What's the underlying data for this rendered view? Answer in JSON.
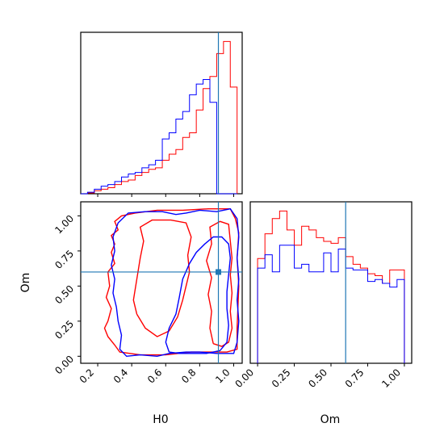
{
  "chart_data": {
    "type": "corner",
    "parameters": [
      "H0",
      "Om"
    ],
    "truths": {
      "H0": 0.91,
      "Om": 0.6
    },
    "colors": {
      "red_samples": "#ff0000",
      "blue_samples": "#0000ff",
      "truth_line": "#1f77b4"
    },
    "panels": [
      {
        "name": "H0-marginal",
        "type": "step-histogram",
        "x_param": "H0",
        "xlim": [
          0.1,
          1.05
        ],
        "xticks": [
          0.2,
          0.4,
          0.6,
          0.8,
          1.0
        ],
        "bin_edges": [
          0.1,
          0.14,
          0.18,
          0.22,
          0.26,
          0.3,
          0.34,
          0.38,
          0.42,
          0.46,
          0.5,
          0.54,
          0.58,
          0.62,
          0.66,
          0.7,
          0.74,
          0.78,
          0.82,
          0.86,
          0.9,
          0.94,
          0.98,
          1.02
        ],
        "series": [
          {
            "color": "red",
            "values": [
              0,
              0.005,
              0.02,
              0.03,
              0.04,
              0.06,
              0.08,
              0.09,
              0.12,
              0.14,
              0.16,
              0.17,
              0.22,
              0.26,
              0.29,
              0.37,
              0.4,
              0.55,
              0.69,
              0.77,
              0.92,
              1.0,
              0.7
            ]
          },
          {
            "color": "blue",
            "values": [
              0,
              0.01,
              0.03,
              0.05,
              0.06,
              0.08,
              0.11,
              0.13,
              0.14,
              0.17,
              0.19,
              0.22,
              0.36,
              0.4,
              0.49,
              0.54,
              0.65,
              0.72,
              0.75,
              0.6,
              0.0,
              0.0,
              0.0
            ]
          }
        ]
      },
      {
        "name": "H0-Om-joint",
        "type": "contour",
        "x_param": "H0",
        "y_param": "Om",
        "xlim": [
          0.1,
          1.05
        ],
        "ylim": [
          -0.05,
          1.1
        ],
        "xticks": [
          0.2,
          0.4,
          0.6,
          0.8,
          1.0
        ],
        "yticks": [
          0.0,
          0.25,
          0.5,
          0.75,
          1.0
        ],
        "series": [
          {
            "color": "red",
            "contours": [
              [
                [
                  0.26,
                  0.25
                ],
                [
                  0.24,
                  0.2
                ],
                [
                  0.26,
                  0.14
                ],
                [
                  0.3,
                  0.08
                ],
                [
                  0.33,
                  0.03
                ],
                [
                  0.45,
                  0.01
                ],
                [
                  0.6,
                  0.01
                ],
                [
                  0.75,
                  0.03
                ],
                [
                  0.86,
                  0.03
                ],
                [
                  0.96,
                  0.03
                ],
                [
                  1.02,
                  0.05
                ],
                [
                  1.02,
                  0.2
                ],
                [
                  1.03,
                  0.5
                ],
                [
                  1.02,
                  0.7
                ],
                [
                  1.03,
                  0.88
                ],
                [
                  1.01,
                  0.98
                ],
                [
                  0.98,
                  1.05
                ],
                [
                  0.85,
                  1.05
                ],
                [
                  0.7,
                  1.04
                ],
                [
                  0.55,
                  1.04
                ],
                [
                  0.42,
                  1.02
                ],
                [
                  0.34,
                  1.0
                ],
                [
                  0.3,
                  0.96
                ],
                [
                  0.32,
                  0.9
                ],
                [
                  0.28,
                  0.86
                ],
                [
                  0.3,
                  0.8
                ],
                [
                  0.28,
                  0.74
                ],
                [
                  0.3,
                  0.66
                ],
                [
                  0.26,
                  0.6
                ],
                [
                  0.27,
                  0.5
                ],
                [
                  0.25,
                  0.42
                ],
                [
                  0.28,
                  0.34
                ],
                [
                  0.26,
                  0.25
                ]
              ],
              [
                [
                  0.43,
                  0.3
                ],
                [
                  0.41,
                  0.4
                ],
                [
                  0.43,
                  0.55
                ],
                [
                  0.45,
                  0.7
                ],
                [
                  0.47,
                  0.82
                ],
                [
                  0.45,
                  0.92
                ],
                [
                  0.52,
                  0.97
                ],
                [
                  0.63,
                  0.97
                ],
                [
                  0.72,
                  0.95
                ],
                [
                  0.75,
                  0.85
                ],
                [
                  0.73,
                  0.72
                ],
                [
                  0.74,
                  0.6
                ],
                [
                  0.72,
                  0.5
                ],
                [
                  0.7,
                  0.4
                ],
                [
                  0.67,
                  0.28
                ],
                [
                  0.62,
                  0.18
                ],
                [
                  0.55,
                  0.14
                ],
                [
                  0.48,
                  0.2
                ],
                [
                  0.43,
                  0.3
                ]
              ],
              [
                [
                  0.88,
                  0.09
                ],
                [
                  0.86,
                  0.2
                ],
                [
                  0.87,
                  0.32
                ],
                [
                  0.85,
                  0.44
                ],
                [
                  0.87,
                  0.56
                ],
                [
                  0.84,
                  0.68
                ],
                [
                  0.87,
                  0.8
                ],
                [
                  0.86,
                  0.92
                ],
                [
                  0.92,
                  0.96
                ],
                [
                  0.97,
                  0.94
                ],
                [
                  0.98,
                  0.82
                ],
                [
                  0.99,
                  0.7
                ],
                [
                  0.98,
                  0.58
                ],
                [
                  0.99,
                  0.45
                ],
                [
                  0.98,
                  0.32
                ],
                [
                  0.99,
                  0.2
                ],
                [
                  0.97,
                  0.1
                ],
                [
                  0.93,
                  0.07
                ],
                [
                  0.88,
                  0.09
                ]
              ]
            ]
          },
          {
            "color": "blue",
            "contours": [
              [
                [
                  0.31,
                  0.35
                ],
                [
                  0.29,
                  0.45
                ],
                [
                  0.3,
                  0.55
                ],
                [
                  0.28,
                  0.65
                ],
                [
                  0.3,
                  0.75
                ],
                [
                  0.29,
                  0.85
                ],
                [
                  0.32,
                  0.95
                ],
                [
                  0.38,
                  1.02
                ],
                [
                  0.48,
                  1.03
                ],
                [
                  0.58,
                  1.03
                ],
                [
                  0.66,
                  1.01
                ],
                [
                  0.72,
                  1.02
                ],
                [
                  0.8,
                  1.04
                ],
                [
                  0.9,
                  1.03
                ],
                [
                  0.98,
                  1.05
                ],
                [
                  1.02,
                  0.98
                ],
                [
                  1.03,
                  0.85
                ],
                [
                  1.02,
                  0.7
                ],
                [
                  1.03,
                  0.55
                ],
                [
                  1.02,
                  0.4
                ],
                [
                  1.03,
                  0.25
                ],
                [
                  1.02,
                  0.1
                ],
                [
                  1.0,
                  0.02
                ],
                [
                  0.9,
                  0.02
                ],
                [
                  0.8,
                  0.03
                ],
                [
                  0.72,
                  0.03
                ],
                [
                  0.62,
                  0.02
                ],
                [
                  0.55,
                  0.0
                ],
                [
                  0.45,
                  0.01
                ],
                [
                  0.37,
                  0.0
                ],
                [
                  0.33,
                  0.05
                ],
                [
                  0.34,
                  0.15
                ],
                [
                  0.32,
                  0.25
                ],
                [
                  0.31,
                  0.35
                ]
              ],
              [
                [
                  0.62,
                  0.03
                ],
                [
                  0.6,
                  0.1
                ],
                [
                  0.62,
                  0.2
                ],
                [
                  0.66,
                  0.3
                ],
                [
                  0.68,
                  0.42
                ],
                [
                  0.7,
                  0.55
                ],
                [
                  0.74,
                  0.66
                ],
                [
                  0.78,
                  0.74
                ],
                [
                  0.83,
                  0.8
                ],
                [
                  0.88,
                  0.85
                ],
                [
                  0.93,
                  0.85
                ],
                [
                  0.97,
                  0.8
                ],
                [
                  0.98,
                  0.7
                ],
                [
                  0.97,
                  0.58
                ],
                [
                  0.96,
                  0.46
                ],
                [
                  0.96,
                  0.34
                ],
                [
                  0.97,
                  0.22
                ],
                [
                  0.96,
                  0.1
                ],
                [
                  0.92,
                  0.04
                ],
                [
                  0.84,
                  0.02
                ],
                [
                  0.75,
                  0.02
                ],
                [
                  0.68,
                  0.02
                ],
                [
                  0.62,
                  0.03
                ]
              ]
            ]
          }
        ]
      },
      {
        "name": "Om-marginal",
        "type": "step-histogram",
        "x_param": "Om",
        "xlim": [
          -0.05,
          1.05
        ],
        "xticks": [
          0.0,
          0.25,
          0.5,
          0.75,
          1.0
        ],
        "bin_edges": [
          0.0,
          0.05,
          0.1,
          0.15,
          0.2,
          0.25,
          0.3,
          0.35,
          0.4,
          0.45,
          0.5,
          0.55,
          0.6,
          0.65,
          0.7,
          0.75,
          0.8,
          0.85,
          0.9,
          0.95,
          1.0
        ],
        "series": [
          {
            "color": "red",
            "values": [
              0.55,
              0.68,
              0.76,
              0.8,
              0.7,
              0.62,
              0.72,
              0.7,
              0.66,
              0.64,
              0.63,
              0.66,
              0.56,
              0.52,
              0.5,
              0.47,
              0.46,
              0.42,
              0.49,
              0.49
            ]
          },
          {
            "color": "blue",
            "values": [
              0.5,
              0.57,
              0.48,
              0.62,
              0.62,
              0.5,
              0.52,
              0.48,
              0.48,
              0.58,
              0.48,
              0.6,
              0.5,
              0.49,
              0.49,
              0.43,
              0.44,
              0.42,
              0.4,
              0.44
            ]
          }
        ]
      }
    ]
  }
}
